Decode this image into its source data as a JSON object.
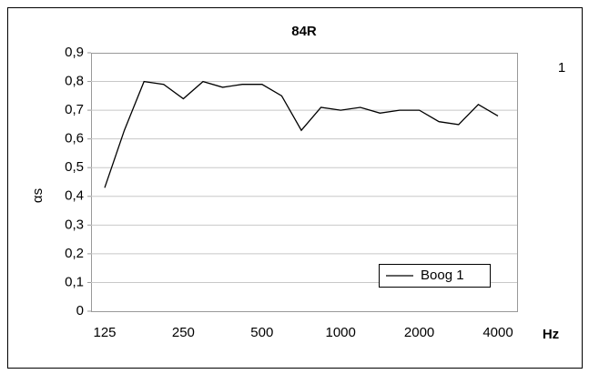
{
  "chart_data": {
    "type": "line",
    "title": "84R",
    "y_label": "αs",
    "x_label": "Hz",
    "annotation": "1",
    "categories": [
      "125",
      null,
      null,
      null,
      "250",
      null,
      null,
      null,
      "500",
      null,
      null,
      null,
      "1000",
      null,
      null,
      null,
      "2000",
      null,
      null,
      null,
      "4000"
    ],
    "series": [
      {
        "name": "Boog 1",
        "color": "#000000",
        "values": [
          0.43,
          0.63,
          0.8,
          0.79,
          0.74,
          0.8,
          0.78,
          0.79,
          0.79,
          0.75,
          0.63,
          0.71,
          0.7,
          0.71,
          0.69,
          0.7,
          0.7,
          0.66,
          0.65,
          0.72,
          0.68
        ]
      }
    ],
    "ylim": [
      0,
      0.9
    ],
    "yticks": [
      0,
      {
        "value": 0.1,
        "label": "0,1"
      },
      {
        "value": 0.2,
        "label": "0,2"
      },
      {
        "value": 0.3,
        "label": "0,3"
      },
      {
        "value": 0.4,
        "label": "0,4"
      },
      {
        "value": 0.5,
        "label": "0,5"
      },
      {
        "value": 0.6,
        "label": "0,6"
      },
      {
        "value": 0.7,
        "label": "0,7"
      },
      {
        "value": 0.8,
        "label": "0,8"
      },
      {
        "value": 0.9,
        "label": "0,9"
      }
    ],
    "grid": true,
    "legend": "lower right"
  }
}
